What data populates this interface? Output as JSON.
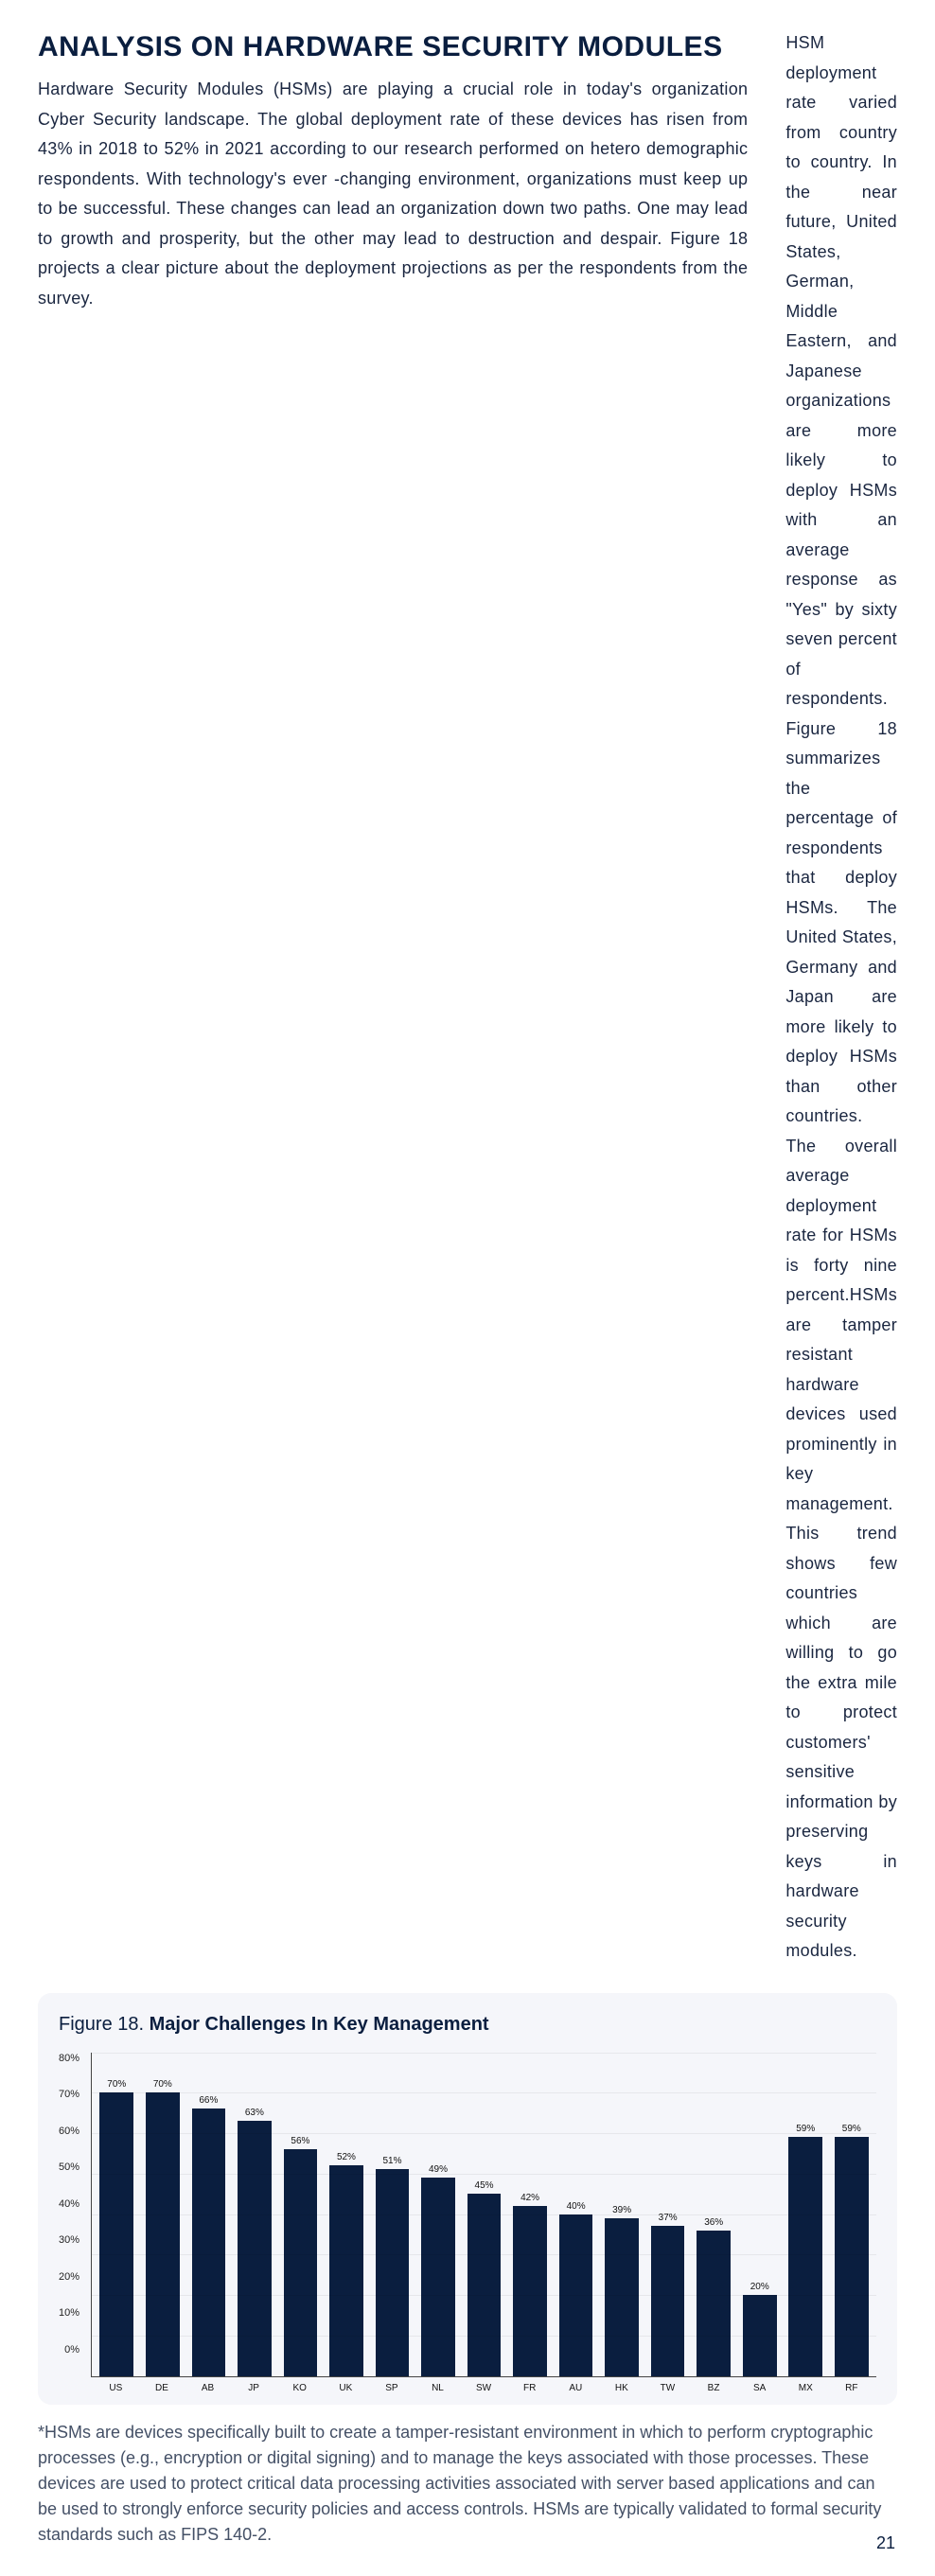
{
  "header": {
    "title": "ANALYSIS ON HARDWARE SECURITY MODULES"
  },
  "body": {
    "left_paragraph": "Hardware Security Modules (HSMs) are playing a crucial role in today's organization Cyber Security landscape. The global deployment rate of these devices has risen from 43% in 2018 to 52% in 2021 according to our research performed on hetero demographic respondents. With technology's ever -changing environment, organizations must keep up to be successful. These changes can lead an organization down two paths. One may lead to growth and prosperity, but the other may lead to destruction and despair. Figure 18 projects a clear picture about the deployment projections as per the respondents from the survey.",
    "right_paragraph": "HSM deployment rate varied from country to country. In the near future, United States, German, Middle Eastern, and Japanese organizations are more likely to deploy HSMs with an average response as \"Yes\" by sixty seven percent of respondents. Figure 18 summarizes the percentage of respondents that deploy HSMs. The United States, Germany and Japan are more likely to deploy HSMs than other countries. The overall average deployment rate for HSMs is forty nine percent.HSMs are tamper resistant hardware devices used prominently in key management. This trend shows few countries which are willing to go the extra mile to protect customers' sensitive information by preserving keys in hardware security modules."
  },
  "figure": {
    "prefix": "Figure 18. ",
    "title": "Major Challenges In Key Management",
    "type": "bar",
    "y_ticks": [
      "80%",
      "70%",
      "60%",
      "50%",
      "40%",
      "30%",
      "20%",
      "10%",
      "0%"
    ],
    "y_max": 80,
    "bar_color": "#0a1e3f",
    "background_color": "#f5f6fa",
    "categories": [
      "US",
      "DE",
      "AB",
      "JP",
      "KO",
      "UK",
      "SP",
      "NL",
      "SW",
      "FR",
      "AU",
      "HK",
      "TW",
      "BZ",
      "SA",
      "MX",
      "RF"
    ],
    "values": [
      70,
      70,
      66,
      63,
      56,
      52,
      51,
      49,
      45,
      42,
      40,
      39,
      37,
      36,
      20,
      59,
      59
    ],
    "value_labels": [
      "70%",
      "70%",
      "66%",
      "63%",
      "56%",
      "52%",
      "51%",
      "49%",
      "45%",
      "42%",
      "40%",
      "39%",
      "37%",
      "36%",
      "20%",
      "59%",
      "59%"
    ]
  },
  "footnote": "*HSMs are devices specifically built to create a tamper-resistant environment in which to perform cryptographic processes (e.g., encryption or digital signing) and to manage the keys associated with those processes. These devices are used to protect critical data processing activities associated with server based applications and can be used to strongly enforce security policies and access controls. HSMs are typically validated to formal security standards such as FIPS 140-2.",
  "page_number": "21"
}
